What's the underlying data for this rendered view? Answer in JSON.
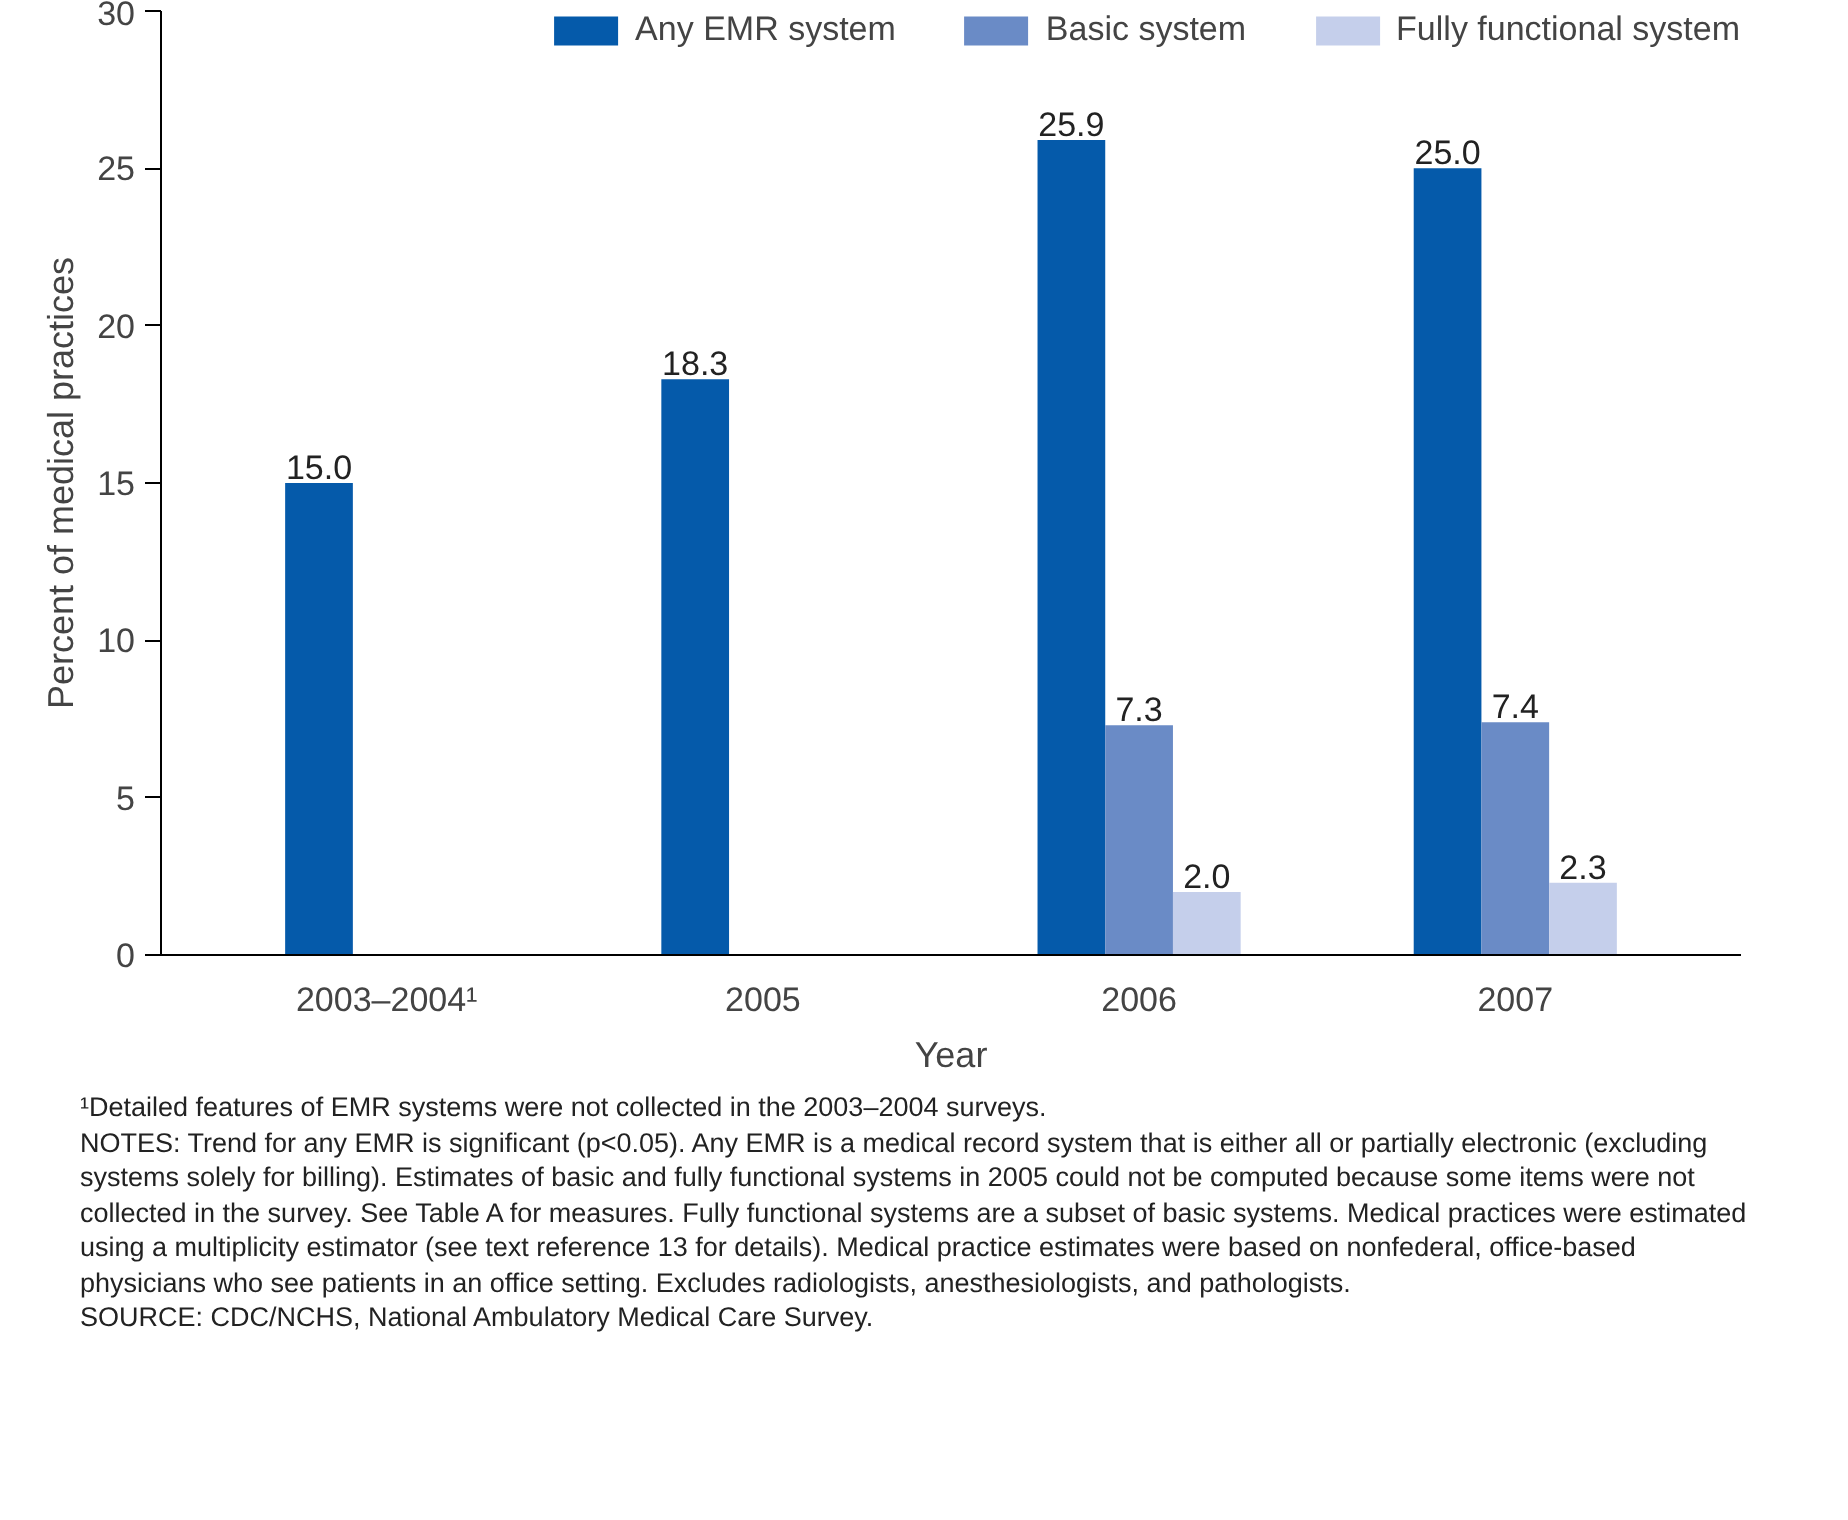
{
  "chart_data": {
    "type": "bar",
    "xlabel": "Year",
    "ylabel": "Percent of medical practices",
    "categories": [
      "2003–2004¹",
      "2005",
      "2006",
      "2007"
    ],
    "series": [
      {
        "name": "Any EMR system",
        "color": "#055aaa",
        "values": [
          15.0,
          18.3,
          25.9,
          25.0
        ],
        "value_labels": [
          "15.0",
          "18.3",
          "25.9",
          "25.0"
        ]
      },
      {
        "name": "Basic system",
        "color": "#6a8bc6",
        "values": [
          null,
          null,
          7.3,
          7.4
        ],
        "value_labels": [
          null,
          null,
          "7.3",
          "7.4"
        ]
      },
      {
        "name": "Fully functional system",
        "color": "#c5cfeb",
        "values": [
          null,
          null,
          2.0,
          2.3
        ],
        "value_labels": [
          null,
          null,
          "2.0",
          "2.3"
        ]
      }
    ],
    "ylim": [
      0,
      30
    ],
    "yticks": [
      0,
      5,
      10,
      15,
      20,
      25,
      30
    ],
    "grid": false,
    "legend": "top",
    "annotations": [
      "¹Detailed features of EMR systems were not collected in the 2003–2004 surveys.",
      "NOTES: Trend for any EMR is significant (p<0.05). Any EMR is a medical record system that is either all or partially electronic (excluding systems solely for billing). Estimates of basic and fully functional systems in 2005 could not be computed because some items were not collected in the survey. See Table A for measures. Fully functional systems are a subset of basic systems. Medical practices were estimated using a multiplicity estimator (see text reference 13 for details). Medical practice estimates were based on nonfederal, office-based physicians who see patients in an office setting. Excludes radiologists, anesthesiologists, and pathologists.",
      "SOURCE: CDC/NCHS, National Ambulatory Medical Care Survey."
    ]
  }
}
